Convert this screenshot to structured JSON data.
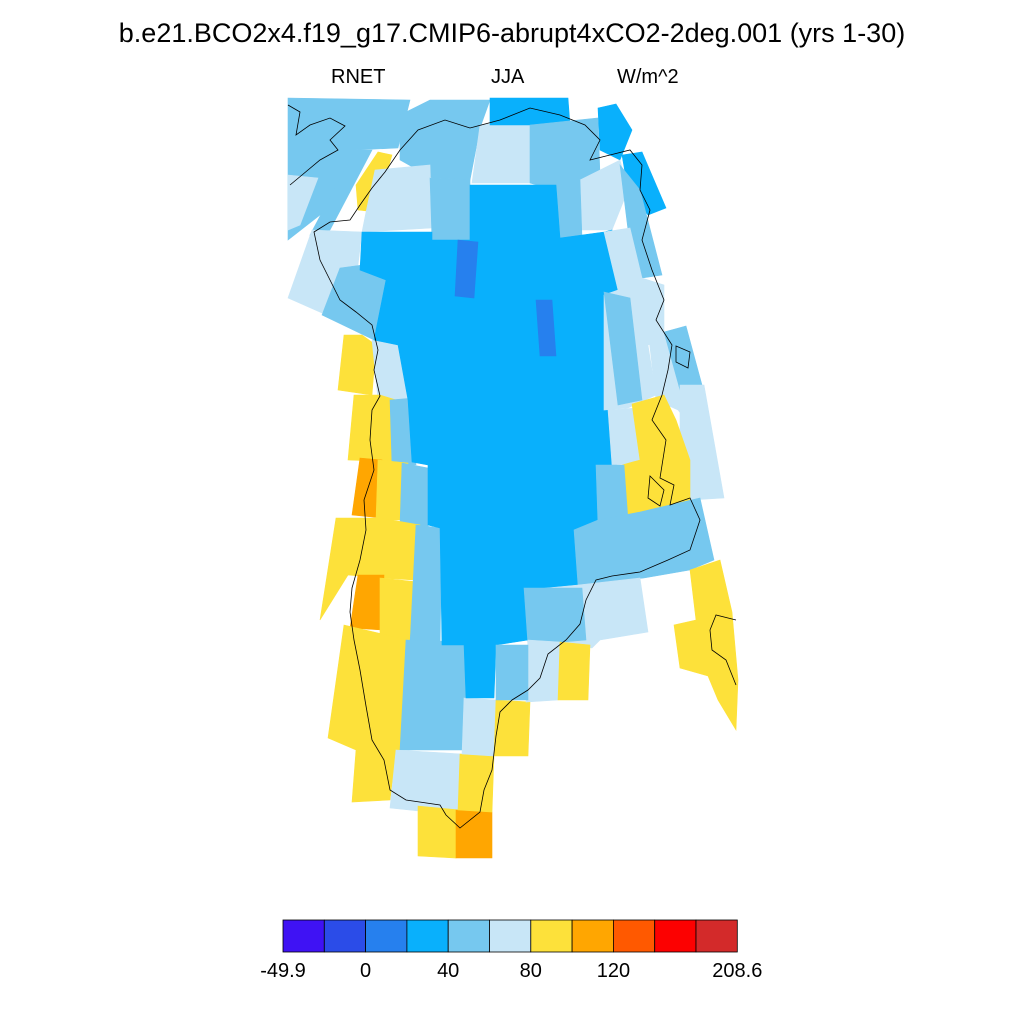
{
  "title": "b.e21.BCO2x4.f19_g17.CMIP6-abrupt4xCO2-2deg.001 (yrs 1-30)",
  "subtitle": {
    "variable": "RNET",
    "season": "JJA",
    "units": "W/m^2"
  },
  "colors": {
    "c0": "#3f12f4",
    "c1": "#2b4ce8",
    "c2": "#2680ee",
    "c3": "#09b0fc",
    "c4": "#76c8ef",
    "c5": "#c8e6f7",
    "c6": "#fde13a",
    "c7": "#ffa601",
    "c8": "#ff5900",
    "c9": "#fc0101",
    "c10": "#d32a2a"
  },
  "colorbar": {
    "bins": 11,
    "labels": [
      {
        "text": "-49.9",
        "bin_edge": 0
      },
      {
        "text": "0",
        "bin_edge": 2
      },
      {
        "text": "40",
        "bin_edge": 4
      },
      {
        "text": "80",
        "bin_edge": 6
      },
      {
        "text": "120",
        "bin_edge": 8
      },
      {
        "text": "208.6",
        "bin_edge": 11
      }
    ]
  }
}
